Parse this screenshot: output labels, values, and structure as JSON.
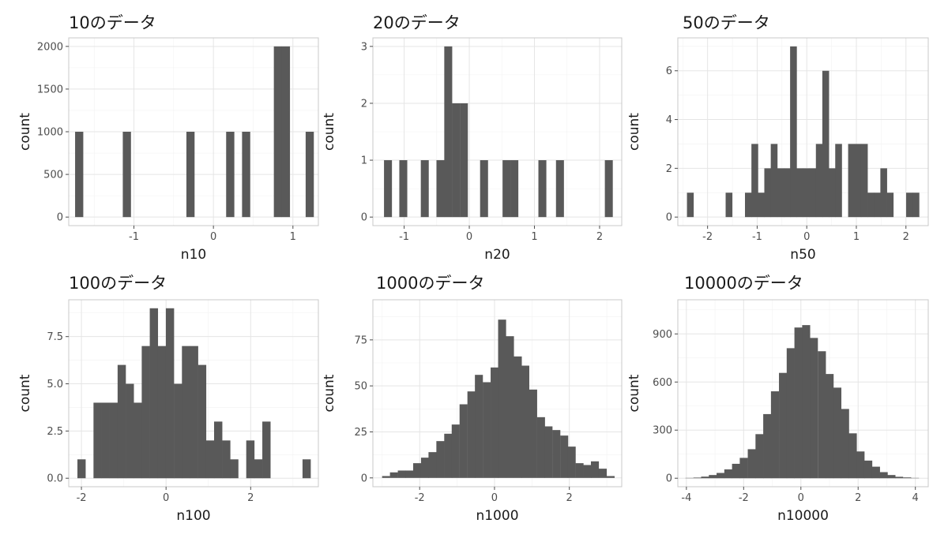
{
  "chart_data": [
    {
      "type": "bar",
      "title": "10のデータ",
      "xlabel": "n10",
      "ylabel": "count",
      "xlim": [
        -1.82,
        1.32
      ],
      "ylim": [
        -100,
        2100
      ],
      "xticks": [
        -1,
        0,
        1
      ],
      "yticks": [
        0,
        500,
        1000,
        1500,
        2000
      ],
      "ytick_labels": [
        "0",
        "500",
        "1000",
        "1500",
        "2000"
      ],
      "bin_width": 0.1,
      "bars": [
        {
          "x": -1.69,
          "y": 1000
        },
        {
          "x": -1.09,
          "y": 1000
        },
        {
          "x": -0.29,
          "y": 1000
        },
        {
          "x": 0.21,
          "y": 1000
        },
        {
          "x": 0.41,
          "y": 1000
        },
        {
          "x": 0.81,
          "y": 2000
        },
        {
          "x": 0.91,
          "y": 2000
        },
        {
          "x": 1.21,
          "y": 1000
        }
      ],
      "grid": true
    },
    {
      "type": "bar",
      "title": "20のデータ",
      "xlabel": "n20",
      "ylabel": "count",
      "xlim": [
        -1.48,
        2.34
      ],
      "ylim": [
        -0.15,
        3.15
      ],
      "xticks": [
        -1,
        0,
        1,
        2
      ],
      "yticks": [
        0,
        1,
        2,
        3
      ],
      "ytick_labels": [
        "0",
        "1",
        "2",
        "3"
      ],
      "bin_width": 0.1185,
      "bars": [
        {
          "x": -1.25,
          "y": 1
        },
        {
          "x": -1.015,
          "y": 1
        },
        {
          "x": -0.685,
          "y": 1
        },
        {
          "x": -0.445,
          "y": 1
        },
        {
          "x": -0.325,
          "y": 3
        },
        {
          "x": -0.205,
          "y": 2
        },
        {
          "x": -0.085,
          "y": 2
        },
        {
          "x": 0.225,
          "y": 1
        },
        {
          "x": 0.57,
          "y": 1
        },
        {
          "x": 0.69,
          "y": 1
        },
        {
          "x": 1.12,
          "y": 1
        },
        {
          "x": 1.39,
          "y": 1
        },
        {
          "x": 2.14,
          "y": 1
        }
      ],
      "grid": true
    },
    {
      "type": "bar",
      "title": "50のデータ",
      "xlabel": "n50",
      "ylabel": "count",
      "xlim": [
        -2.6,
        2.45
      ],
      "ylim": [
        -0.35,
        7.35
      ],
      "xticks": [
        -2,
        -1,
        0,
        1,
        2
      ],
      "yticks": [
        0,
        2,
        4,
        6
      ],
      "ytick_labels": [
        "0",
        "2",
        "4",
        "6"
      ],
      "bin_width": 0.1315,
      "bars": [
        {
          "x": -2.35,
          "y": 1
        },
        {
          "x": -1.57,
          "y": 1
        },
        {
          "x": -1.18,
          "y": 1
        },
        {
          "x": -1.05,
          "y": 3
        },
        {
          "x": -0.92,
          "y": 1
        },
        {
          "x": -0.79,
          "y": 2
        },
        {
          "x": -0.66,
          "y": 3
        },
        {
          "x": -0.53,
          "y": 2
        },
        {
          "x": -0.4,
          "y": 2
        },
        {
          "x": -0.27,
          "y": 7
        },
        {
          "x": -0.14,
          "y": 2
        },
        {
          "x": -0.01,
          "y": 2
        },
        {
          "x": 0.12,
          "y": 2
        },
        {
          "x": 0.25,
          "y": 3
        },
        {
          "x": 0.38,
          "y": 6
        },
        {
          "x": 0.51,
          "y": 2
        },
        {
          "x": 0.64,
          "y": 3
        },
        {
          "x": 0.77,
          "y": 0
        },
        {
          "x": 0.9,
          "y": 3
        },
        {
          "x": 1.03,
          "y": 3
        },
        {
          "x": 1.16,
          "y": 3
        },
        {
          "x": 1.29,
          "y": 1
        },
        {
          "x": 1.42,
          "y": 1
        },
        {
          "x": 1.55,
          "y": 2
        },
        {
          "x": 1.68,
          "y": 1
        },
        {
          "x": 2.07,
          "y": 1
        },
        {
          "x": 2.2,
          "y": 1
        }
      ],
      "grid": true
    },
    {
      "type": "bar",
      "title": "100のデータ",
      "xlabel": "n100",
      "ylabel": "count",
      "xlim": [
        -2.3,
        3.6
      ],
      "ylim": [
        -0.45,
        9.45
      ],
      "xticks": [
        -2,
        0,
        2
      ],
      "yticks": [
        0,
        2.5,
        5,
        7.5
      ],
      "ytick_labels": [
        "0.0",
        "2.5",
        "5.0",
        "7.5"
      ],
      "bin_width": 0.1895,
      "bars": [
        {
          "x": -2.0,
          "y": 1
        },
        {
          "x": -1.62,
          "y": 4
        },
        {
          "x": -1.43,
          "y": 4
        },
        {
          "x": -1.24,
          "y": 4
        },
        {
          "x": -1.05,
          "y": 6
        },
        {
          "x": -0.86,
          "y": 5
        },
        {
          "x": -0.67,
          "y": 4
        },
        {
          "x": -0.48,
          "y": 7
        },
        {
          "x": -0.29,
          "y": 9
        },
        {
          "x": -0.1,
          "y": 7
        },
        {
          "x": 0.09,
          "y": 9
        },
        {
          "x": 0.28,
          "y": 5
        },
        {
          "x": 0.47,
          "y": 7
        },
        {
          "x": 0.66,
          "y": 7
        },
        {
          "x": 0.85,
          "y": 6
        },
        {
          "x": 1.04,
          "y": 2
        },
        {
          "x": 1.23,
          "y": 3
        },
        {
          "x": 1.42,
          "y": 2
        },
        {
          "x": 1.61,
          "y": 1
        },
        {
          "x": 1.8,
          "y": 0
        },
        {
          "x": 1.99,
          "y": 2
        },
        {
          "x": 2.18,
          "y": 1
        },
        {
          "x": 2.37,
          "y": 3
        },
        {
          "x": 3.32,
          "y": 1
        }
      ],
      "grid": true
    },
    {
      "type": "bar",
      "title": "1000のデータ",
      "xlabel": "n1000",
      "ylabel": "count",
      "xlim": [
        -3.25,
        3.4
      ],
      "ylim": [
        -4.8,
        96.8
      ],
      "xticks": [
        -2,
        0,
        2
      ],
      "yticks": [
        0,
        25,
        50,
        75
      ],
      "ytick_labels": [
        "0",
        "25",
        "50",
        "75"
      ],
      "bin_width": 0.2071,
      "bars": [
        {
          "x": -2.9,
          "y": 1
        },
        {
          "x": -2.69,
          "y": 3
        },
        {
          "x": -2.48,
          "y": 4
        },
        {
          "x": -2.28,
          "y": 4
        },
        {
          "x": -2.07,
          "y": 8
        },
        {
          "x": -1.86,
          "y": 11
        },
        {
          "x": -1.66,
          "y": 14
        },
        {
          "x": -1.45,
          "y": 20
        },
        {
          "x": -1.24,
          "y": 24
        },
        {
          "x": -1.04,
          "y": 29
        },
        {
          "x": -0.83,
          "y": 40
        },
        {
          "x": -0.62,
          "y": 47
        },
        {
          "x": -0.42,
          "y": 56
        },
        {
          "x": -0.21,
          "y": 52
        },
        {
          "x": 0.0,
          "y": 60
        },
        {
          "x": 0.2,
          "y": 86
        },
        {
          "x": 0.41,
          "y": 77
        },
        {
          "x": 0.62,
          "y": 66
        },
        {
          "x": 0.82,
          "y": 61
        },
        {
          "x": 1.03,
          "y": 48
        },
        {
          "x": 1.24,
          "y": 33
        },
        {
          "x": 1.44,
          "y": 28
        },
        {
          "x": 1.65,
          "y": 26
        },
        {
          "x": 1.86,
          "y": 23
        },
        {
          "x": 2.06,
          "y": 17
        },
        {
          "x": 2.27,
          "y": 8
        },
        {
          "x": 2.48,
          "y": 7
        },
        {
          "x": 2.68,
          "y": 9
        },
        {
          "x": 2.89,
          "y": 5
        },
        {
          "x": 3.1,
          "y": 1
        }
      ],
      "grid": true
    },
    {
      "type": "bar",
      "title": "10000のデータ",
      "xlabel": "n10000",
      "ylabel": "count",
      "xlim": [
        -4.3,
        4.45
      ],
      "ylim": [
        -53,
        1113
      ],
      "xticks": [
        -4,
        -2,
        0,
        2,
        4
      ],
      "yticks": [
        0,
        300,
        600,
        900
      ],
      "ytick_labels": [
        "0",
        "300",
        "600",
        "900"
      ],
      "bin_width": 0.2719,
      "bars": [
        {
          "x": -3.9,
          "y": 2
        },
        {
          "x": -3.62,
          "y": 4
        },
        {
          "x": -3.35,
          "y": 10
        },
        {
          "x": -3.08,
          "y": 20
        },
        {
          "x": -2.81,
          "y": 33
        },
        {
          "x": -2.54,
          "y": 55
        },
        {
          "x": -2.27,
          "y": 90
        },
        {
          "x": -2.0,
          "y": 127
        },
        {
          "x": -1.72,
          "y": 181
        },
        {
          "x": -1.45,
          "y": 275
        },
        {
          "x": -1.18,
          "y": 400
        },
        {
          "x": -0.91,
          "y": 542
        },
        {
          "x": -0.63,
          "y": 657
        },
        {
          "x": -0.36,
          "y": 811
        },
        {
          "x": -0.09,
          "y": 940
        },
        {
          "x": 0.18,
          "y": 955
        },
        {
          "x": 0.45,
          "y": 875
        },
        {
          "x": 0.73,
          "y": 792
        },
        {
          "x": 1.0,
          "y": 650
        },
        {
          "x": 1.27,
          "y": 565
        },
        {
          "x": 1.54,
          "y": 432
        },
        {
          "x": 1.81,
          "y": 280
        },
        {
          "x": 2.08,
          "y": 167
        },
        {
          "x": 2.35,
          "y": 110
        },
        {
          "x": 2.62,
          "y": 72
        },
        {
          "x": 2.89,
          "y": 38
        },
        {
          "x": 3.16,
          "y": 20
        },
        {
          "x": 3.43,
          "y": 9
        },
        {
          "x": 3.71,
          "y": 5
        },
        {
          "x": 3.98,
          "y": 2
        }
      ],
      "grid": true
    }
  ]
}
